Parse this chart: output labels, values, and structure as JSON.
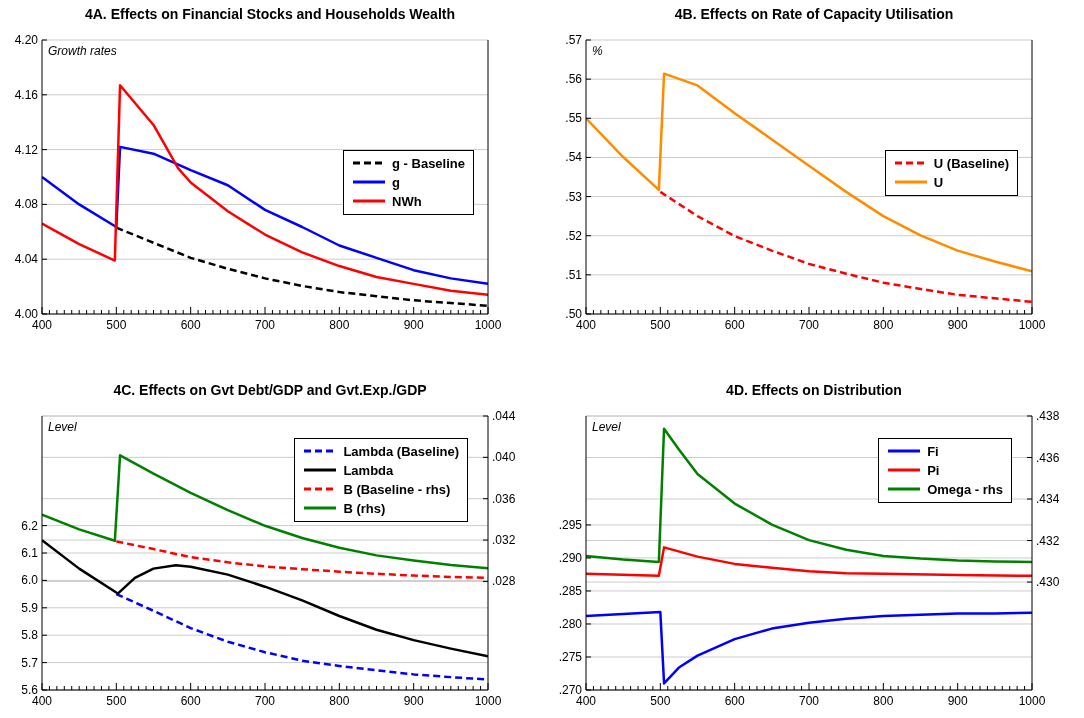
{
  "chart_data": [
    {
      "type": "line",
      "title": "4A. Effects on Financial Stocks and Households Wealth",
      "annotations": [
        "Growth rates"
      ],
      "xlim": [
        400,
        1000
      ],
      "ylim": [
        4.0,
        4.2
      ],
      "xticks": [
        400,
        500,
        600,
        700,
        800,
        900,
        1000,
        {
          "value": 410,
          "label": null
        },
        {
          "value": 420,
          "label": null
        },
        {
          "value": 430,
          "label": null
        },
        {
          "value": 440,
          "label": null
        },
        {
          "value": 450,
          "label": null
        },
        {
          "value": 460,
          "label": null
        },
        {
          "value": 470,
          "label": null
        },
        {
          "value": 480,
          "label": null
        },
        {
          "value": 490,
          "label": null
        },
        {
          "value": 510,
          "label": null
        },
        {
          "value": 520,
          "label": null
        },
        {
          "value": 530,
          "label": null
        },
        {
          "value": 540,
          "label": null
        },
        {
          "value": 550,
          "label": null
        },
        {
          "value": 560,
          "label": null
        },
        {
          "value": 570,
          "label": null
        },
        {
          "value": 580,
          "label": null
        },
        {
          "value": 590,
          "label": null
        },
        {
          "value": 610,
          "label": null
        },
        {
          "value": 620,
          "label": null
        },
        {
          "value": 630,
          "label": null
        },
        {
          "value": 640,
          "label": null
        },
        {
          "value": 650,
          "label": null
        },
        {
          "value": 660,
          "label": null
        },
        {
          "value": 670,
          "label": null
        },
        {
          "value": 680,
          "label": null
        },
        {
          "value": 690,
          "label": null
        },
        {
          "value": 710,
          "label": null
        },
        {
          "value": 720,
          "label": null
        },
        {
          "value": 730,
          "label": null
        },
        {
          "value": 740,
          "label": null
        },
        {
          "value": 750,
          "label": null
        },
        {
          "value": 760,
          "label": null
        },
        {
          "value": 770,
          "label": null
        },
        {
          "value": 780,
          "label": null
        },
        {
          "value": 790,
          "label": null
        },
        {
          "value": 810,
          "label": null
        },
        {
          "value": 820,
          "label": null
        },
        {
          "value": 830,
          "label": null
        },
        {
          "value": 840,
          "label": null
        },
        {
          "value": 850,
          "label": null
        },
        {
          "value": 860,
          "label": null
        },
        {
          "value": 870,
          "label": null
        },
        {
          "value": 880,
          "label": null
        },
        {
          "value": 890,
          "label": null
        },
        {
          "value": 910,
          "label": null
        },
        {
          "value": 920,
          "label": null
        },
        {
          "value": 930,
          "label": null
        },
        {
          "value": 940,
          "label": null
        },
        {
          "value": 950,
          "label": null
        },
        {
          "value": 960,
          "label": null
        },
        {
          "value": 970,
          "label": null
        },
        {
          "value": 980,
          "label": null
        },
        {
          "value": 990,
          "label": null
        }
      ],
      "yticks": [
        {
          "value": 4.0,
          "label": "4.00"
        },
        {
          "value": 4.04,
          "label": "4.04"
        },
        {
          "value": 4.08,
          "label": "4.08"
        },
        {
          "value": 4.12,
          "label": "4.12"
        },
        {
          "value": 4.16,
          "label": "4.16"
        },
        {
          "value": 4.2,
          "label": "4.20"
        }
      ],
      "grid": "y",
      "legend": "right",
      "series": [
        {
          "name": "g - Baseline",
          "color": "#000000",
          "line_style": "dashed",
          "x": [
            500,
            550,
            600,
            650,
            700,
            750,
            800,
            850,
            900,
            950,
            1000
          ],
          "values": [
            4.063,
            4.052,
            4.041,
            4.033,
            4.026,
            4.0205,
            4.016,
            4.013,
            4.01,
            4.008,
            4.006
          ]
        },
        {
          "name": "g",
          "color": "#0000ff",
          "line_style": "solid",
          "x": [
            400,
            450,
            500,
            505,
            550,
            600,
            650,
            700,
            750,
            800,
            850,
            900,
            950,
            1000
          ],
          "values": [
            4.1,
            4.08,
            4.0635,
            4.122,
            4.117,
            4.105,
            4.094,
            4.076,
            4.0635,
            4.05,
            4.041,
            4.032,
            4.026,
            4.022
          ]
        },
        {
          "name": "NWh",
          "color": "#ff0000",
          "line_style": "solid",
          "x": [
            400,
            450,
            498,
            505,
            550,
            583,
            600,
            650,
            700,
            750,
            800,
            850,
            900,
            950,
            1000
          ],
          "values": [
            4.066,
            4.051,
            4.039,
            4.167,
            4.138,
            4.1065,
            4.096,
            4.075,
            4.058,
            4.045,
            4.035,
            4.027,
            4.022,
            4.017,
            4.014
          ]
        }
      ]
    },
    {
      "type": "line",
      "title": "4B. Effects on Rate of Capacity Utilisation",
      "annotations": [
        "%"
      ],
      "xlim": [
        400,
        1000
      ],
      "ylim": [
        0.5,
        0.57
      ],
      "xticks": [
        400,
        500,
        600,
        700,
        800,
        900,
        1000,
        {
          "value": 410,
          "label": null
        },
        {
          "value": 420,
          "label": null
        },
        {
          "value": 430,
          "label": null
        },
        {
          "value": 440,
          "label": null
        },
        {
          "value": 450,
          "label": null
        },
        {
          "value": 460,
          "label": null
        },
        {
          "value": 470,
          "label": null
        },
        {
          "value": 480,
          "label": null
        },
        {
          "value": 490,
          "label": null
        },
        {
          "value": 510,
          "label": null
        },
        {
          "value": 520,
          "label": null
        },
        {
          "value": 530,
          "label": null
        },
        {
          "value": 540,
          "label": null
        },
        {
          "value": 550,
          "label": null
        },
        {
          "value": 560,
          "label": null
        },
        {
          "value": 570,
          "label": null
        },
        {
          "value": 580,
          "label": null
        },
        {
          "value": 590,
          "label": null
        },
        {
          "value": 610,
          "label": null
        },
        {
          "value": 620,
          "label": null
        },
        {
          "value": 630,
          "label": null
        },
        {
          "value": 640,
          "label": null
        },
        {
          "value": 650,
          "label": null
        },
        {
          "value": 660,
          "label": null
        },
        {
          "value": 670,
          "label": null
        },
        {
          "value": 680,
          "label": null
        },
        {
          "value": 690,
          "label": null
        },
        {
          "value": 710,
          "label": null
        },
        {
          "value": 720,
          "label": null
        },
        {
          "value": 730,
          "label": null
        },
        {
          "value": 740,
          "label": null
        },
        {
          "value": 750,
          "label": null
        },
        {
          "value": 760,
          "label": null
        },
        {
          "value": 770,
          "label": null
        },
        {
          "value": 780,
          "label": null
        },
        {
          "value": 790,
          "label": null
        },
        {
          "value": 810,
          "label": null
        },
        {
          "value": 820,
          "label": null
        },
        {
          "value": 830,
          "label": null
        },
        {
          "value": 840,
          "label": null
        },
        {
          "value": 850,
          "label": null
        },
        {
          "value": 860,
          "label": null
        },
        {
          "value": 870,
          "label": null
        },
        {
          "value": 880,
          "label": null
        },
        {
          "value": 890,
          "label": null
        },
        {
          "value": 910,
          "label": null
        },
        {
          "value": 920,
          "label": null
        },
        {
          "value": 930,
          "label": null
        },
        {
          "value": 940,
          "label": null
        },
        {
          "value": 950,
          "label": null
        },
        {
          "value": 960,
          "label": null
        },
        {
          "value": 970,
          "label": null
        },
        {
          "value": 980,
          "label": null
        },
        {
          "value": 990,
          "label": null
        }
      ],
      "yticks": [
        {
          "value": 0.5,
          "label": ".50"
        },
        {
          "value": 0.51,
          "label": ".51"
        },
        {
          "value": 0.52,
          "label": ".52"
        },
        {
          "value": 0.53,
          "label": ".53"
        },
        {
          "value": 0.54,
          "label": ".54"
        },
        {
          "value": 0.55,
          "label": ".55"
        },
        {
          "value": 0.56,
          "label": ".56"
        },
        {
          "value": 0.57,
          "label": ".57"
        }
      ],
      "grid": "y",
      "legend": "right",
      "series": [
        {
          "name": "U (Baseline)",
          "color": "#ff0000",
          "line_style": "dashed",
          "x": [
            500,
            550,
            600,
            650,
            700,
            750,
            800,
            850,
            900,
            950,
            1000
          ],
          "values": [
            0.5312,
            0.525,
            0.5199,
            0.5162,
            0.5128,
            0.5103,
            0.508,
            0.5064,
            0.5049,
            0.504,
            0.5031
          ]
        },
        {
          "name": "U",
          "color": "#ff8c00",
          "line_style": "solid",
          "x": [
            400,
            450,
            498,
            505,
            550,
            600,
            650,
            700,
            750,
            800,
            850,
            900,
            950,
            1000
          ],
          "values": [
            0.55,
            0.5401,
            0.5317,
            0.5614,
            0.5584,
            0.5513,
            0.5446,
            0.5379,
            0.5312,
            0.525,
            0.5201,
            0.5162,
            0.5134,
            0.5109
          ]
        }
      ]
    },
    {
      "type": "line",
      "title": "4C. Effects on Gvt Debt/GDP and Gvt.Exp./GDP",
      "annotations": [
        "Level"
      ],
      "xlim": [
        400,
        1000
      ],
      "ylim": [
        5.6,
        6.6
      ],
      "y2lim": [
        0.0175,
        0.044
      ],
      "xticks": [
        400,
        500,
        600,
        700,
        800,
        900,
        1000,
        {
          "value": 410,
          "label": null
        },
        {
          "value": 420,
          "label": null
        },
        {
          "value": 430,
          "label": null
        },
        {
          "value": 440,
          "label": null
        },
        {
          "value": 450,
          "label": null
        },
        {
          "value": 460,
          "label": null
        },
        {
          "value": 470,
          "label": null
        },
        {
          "value": 480,
          "label": null
        },
        {
          "value": 490,
          "label": null
        },
        {
          "value": 510,
          "label": null
        },
        {
          "value": 520,
          "label": null
        },
        {
          "value": 530,
          "label": null
        },
        {
          "value": 540,
          "label": null
        },
        {
          "value": 550,
          "label": null
        },
        {
          "value": 560,
          "label": null
        },
        {
          "value": 570,
          "label": null
        },
        {
          "value": 580,
          "label": null
        },
        {
          "value": 590,
          "label": null
        },
        {
          "value": 610,
          "label": null
        },
        {
          "value": 620,
          "label": null
        },
        {
          "value": 630,
          "label": null
        },
        {
          "value": 640,
          "label": null
        },
        {
          "value": 650,
          "label": null
        },
        {
          "value": 660,
          "label": null
        },
        {
          "value": 670,
          "label": null
        },
        {
          "value": 680,
          "label": null
        },
        {
          "value": 690,
          "label": null
        },
        {
          "value": 710,
          "label": null
        },
        {
          "value": 720,
          "label": null
        },
        {
          "value": 730,
          "label": null
        },
        {
          "value": 740,
          "label": null
        },
        {
          "value": 750,
          "label": null
        },
        {
          "value": 760,
          "label": null
        },
        {
          "value": 770,
          "label": null
        },
        {
          "value": 780,
          "label": null
        },
        {
          "value": 790,
          "label": null
        },
        {
          "value": 810,
          "label": null
        },
        {
          "value": 820,
          "label": null
        },
        {
          "value": 830,
          "label": null
        },
        {
          "value": 840,
          "label": null
        },
        {
          "value": 850,
          "label": null
        },
        {
          "value": 860,
          "label": null
        },
        {
          "value": 870,
          "label": null
        },
        {
          "value": 880,
          "label": null
        },
        {
          "value": 890,
          "label": null
        },
        {
          "value": 910,
          "label": null
        },
        {
          "value": 920,
          "label": null
        },
        {
          "value": 930,
          "label": null
        },
        {
          "value": 940,
          "label": null
        },
        {
          "value": 950,
          "label": null
        },
        {
          "value": 960,
          "label": null
        },
        {
          "value": 970,
          "label": null
        },
        {
          "value": 980,
          "label": null
        },
        {
          "value": 990,
          "label": null
        }
      ],
      "yticks": [
        {
          "value": 5.6,
          "label": "5.6"
        },
        {
          "value": 5.7,
          "label": "5.7"
        },
        {
          "value": 5.8,
          "label": "5.8"
        },
        {
          "value": 5.9,
          "label": "5.9"
        },
        {
          "value": 6.0,
          "label": "6.0"
        },
        {
          "value": 6.1,
          "label": "6.1"
        },
        {
          "value": 6.2,
          "label": "6.2"
        }
      ],
      "y2ticks": [
        {
          "value": 0.028,
          "label": ".028"
        },
        {
          "value": 0.032,
          "label": ".032"
        },
        {
          "value": 0.036,
          "label": ".036"
        },
        {
          "value": 0.04,
          "label": ".040"
        },
        {
          "value": 0.044,
          "label": ".044"
        }
      ],
      "grid": "y",
      "legend": "top right",
      "series": [
        {
          "name": "Lambda (Baseline)",
          "color": "#0000ff",
          "line_style": "dashed",
          "x": [
            500,
            550,
            600,
            650,
            700,
            750,
            800,
            850,
            900,
            950,
            1000
          ],
          "values": [
            5.95,
            5.889,
            5.826,
            5.776,
            5.738,
            5.707,
            5.688,
            5.672,
            5.657,
            5.647,
            5.638
          ]
        },
        {
          "name": "Lambda",
          "color": "#000000",
          "line_style": "solid",
          "x": [
            400,
            450,
            502,
            525,
            550,
            580,
            600,
            650,
            700,
            750,
            800,
            850,
            900,
            950,
            1000
          ],
          "values": [
            6.147,
            6.043,
            5.952,
            6.009,
            6.043,
            6.055,
            6.05,
            6.021,
            5.977,
            5.927,
            5.87,
            5.82,
            5.782,
            5.751,
            5.723
          ]
        },
        {
          "name": "B (Baseline - rhs)",
          "color": "#ff0000",
          "line_style": "dashed",
          "axis": "y2",
          "x": [
            500,
            550,
            600,
            650,
            700,
            750,
            800,
            850,
            900,
            950,
            1000
          ],
          "values": [
            0.03187,
            0.03113,
            0.03035,
            0.02985,
            0.02945,
            0.02918,
            0.02894,
            0.02874,
            0.02857,
            0.02844,
            0.02834
          ]
        },
        {
          "name": "B (rhs)",
          "color": "#008000",
          "line_style": "solid",
          "axis": "y2",
          "x": [
            400,
            450,
            498,
            505,
            550,
            600,
            650,
            700,
            750,
            800,
            850,
            900,
            950,
            1000
          ],
          "values": [
            0.03445,
            0.03304,
            0.03193,
            0.0402,
            0.03842,
            0.03657,
            0.03489,
            0.03338,
            0.0322,
            0.03126,
            0.03052,
            0.03002,
            0.02958,
            0.02928
          ]
        }
      ]
    },
    {
      "type": "line",
      "title": "4D. Effects on Distribution",
      "annotations": [
        "Level"
      ],
      "xlim": [
        400,
        1000
      ],
      "ylim": [
        0.27,
        0.3115
      ],
      "y2lim": [
        0.4248,
        0.438
      ],
      "xticks": [
        400,
        500,
        600,
        700,
        800,
        900,
        1000,
        {
          "value": 410,
          "label": null
        },
        {
          "value": 420,
          "label": null
        },
        {
          "value": 430,
          "label": null
        },
        {
          "value": 440,
          "label": null
        },
        {
          "value": 450,
          "label": null
        },
        {
          "value": 460,
          "label": null
        },
        {
          "value": 470,
          "label": null
        },
        {
          "value": 480,
          "label": null
        },
        {
          "value": 490,
          "label": null
        },
        {
          "value": 510,
          "label": null
        },
        {
          "value": 520,
          "label": null
        },
        {
          "value": 530,
          "label": null
        },
        {
          "value": 540,
          "label": null
        },
        {
          "value": 550,
          "label": null
        },
        {
          "value": 560,
          "label": null
        },
        {
          "value": 570,
          "label": null
        },
        {
          "value": 580,
          "label": null
        },
        {
          "value": 590,
          "label": null
        },
        {
          "value": 610,
          "label": null
        },
        {
          "value": 620,
          "label": null
        },
        {
          "value": 630,
          "label": null
        },
        {
          "value": 640,
          "label": null
        },
        {
          "value": 650,
          "label": null
        },
        {
          "value": 660,
          "label": null
        },
        {
          "value": 670,
          "label": null
        },
        {
          "value": 680,
          "label": null
        },
        {
          "value": 690,
          "label": null
        },
        {
          "value": 710,
          "label": null
        },
        {
          "value": 720,
          "label": null
        },
        {
          "value": 730,
          "label": null
        },
        {
          "value": 740,
          "label": null
        },
        {
          "value": 750,
          "label": null
        },
        {
          "value": 760,
          "label": null
        },
        {
          "value": 770,
          "label": null
        },
        {
          "value": 780,
          "label": null
        },
        {
          "value": 790,
          "label": null
        },
        {
          "value": 810,
          "label": null
        },
        {
          "value": 820,
          "label": null
        },
        {
          "value": 830,
          "label": null
        },
        {
          "value": 840,
          "label": null
        },
        {
          "value": 850,
          "label": null
        },
        {
          "value": 860,
          "label": null
        },
        {
          "value": 870,
          "label": null
        },
        {
          "value": 880,
          "label": null
        },
        {
          "value": 890,
          "label": null
        },
        {
          "value": 910,
          "label": null
        },
        {
          "value": 920,
          "label": null
        },
        {
          "value": 930,
          "label": null
        },
        {
          "value": 940,
          "label": null
        },
        {
          "value": 950,
          "label": null
        },
        {
          "value": 960,
          "label": null
        },
        {
          "value": 970,
          "label": null
        },
        {
          "value": 980,
          "label": null
        },
        {
          "value": 990,
          "label": null
        }
      ],
      "yticks": [
        {
          "value": 0.27,
          "label": ".270"
        },
        {
          "value": 0.275,
          "label": ".275"
        },
        {
          "value": 0.28,
          "label": ".280"
        },
        {
          "value": 0.285,
          "label": ".285"
        },
        {
          "value": 0.29,
          "label": ".290"
        },
        {
          "value": 0.295,
          "label": ".295"
        }
      ],
      "y2ticks": [
        {
          "value": 0.43,
          "label": ".430"
        },
        {
          "value": 0.432,
          "label": ".432"
        },
        {
          "value": 0.434,
          "label": ".434"
        },
        {
          "value": 0.436,
          "label": ".436"
        },
        {
          "value": 0.438,
          "label": ".438"
        }
      ],
      "grid": "y",
      "legend": "top right",
      "series": [
        {
          "name": "Fi",
          "color": "#0000ff",
          "line_style": "solid",
          "x": [
            400,
            450,
            500,
            505,
            525,
            550,
            600,
            650,
            700,
            750,
            800,
            850,
            900,
            950,
            1000
          ],
          "values": [
            0.2812,
            0.2815,
            0.2818,
            0.271,
            0.2734,
            0.2752,
            0.2777,
            0.2793,
            0.2802,
            0.2808,
            0.2812,
            0.2814,
            0.2816,
            0.2816,
            0.2817
          ]
        },
        {
          "name": "Pi",
          "color": "#ff0000",
          "line_style": "solid",
          "x": [
            400,
            498,
            505,
            550,
            600,
            650,
            700,
            750,
            800,
            900,
            1000
          ],
          "values": [
            0.2876,
            0.2873,
            0.2916,
            0.2902,
            0.2891,
            0.2885,
            0.288,
            0.2877,
            0.2876,
            0.2874,
            0.2873
          ]
        },
        {
          "name": "Omega - rhs",
          "color": "#008000",
          "line_style": "solid",
          "axis": "y2",
          "x": [
            400,
            450,
            498,
            505,
            525,
            550,
            600,
            650,
            700,
            750,
            800,
            850,
            900,
            950,
            1000
          ],
          "values": [
            0.43126,
            0.43109,
            0.43097,
            0.43739,
            0.43639,
            0.43521,
            0.43378,
            0.43277,
            0.43202,
            0.43156,
            0.43126,
            0.43113,
            0.43104,
            0.43099,
            0.43097
          ]
        }
      ]
    }
  ]
}
